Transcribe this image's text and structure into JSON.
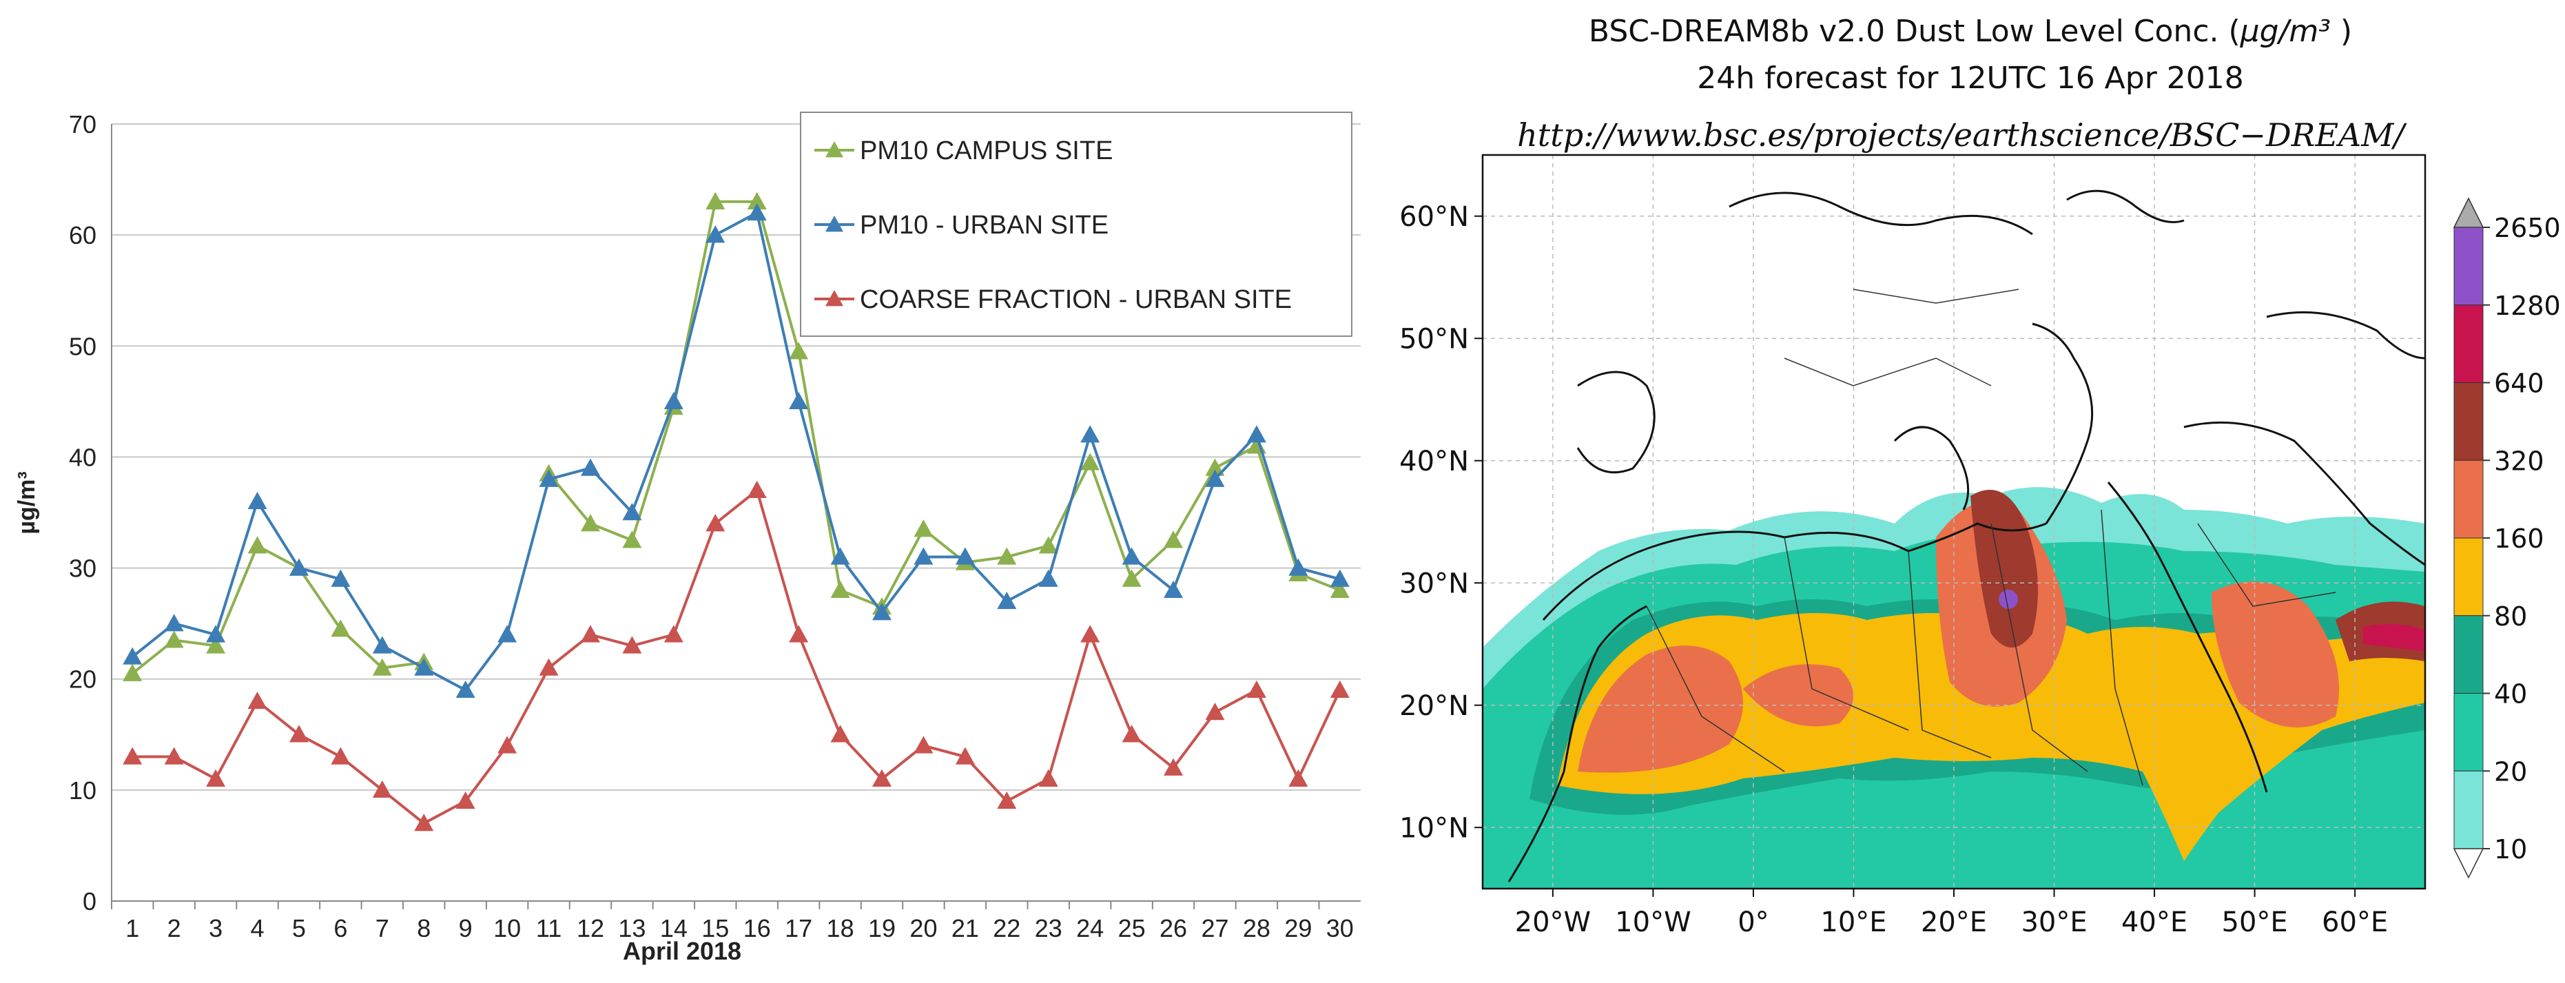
{
  "chart_data": [
    {
      "type": "line",
      "xlabel": "April 2018",
      "ylabel": "µg/m³",
      "ylim": [
        0,
        70
      ],
      "yticks": [
        0,
        10,
        20,
        30,
        40,
        50,
        60,
        70
      ],
      "grid": "horizontal",
      "legend_position": "top-right",
      "categories": [
        "1",
        "2",
        "3",
        "4",
        "5",
        "6",
        "7",
        "8",
        "9",
        "10",
        "11",
        "12",
        "13",
        "14",
        "15",
        "16",
        "17",
        "18",
        "19",
        "20",
        "21",
        "22",
        "23",
        "24",
        "25",
        "26",
        "27",
        "28",
        "29",
        "30"
      ],
      "series": [
        {
          "name": "PM10 CAMPUS SITE",
          "color": "#8db04e",
          "values": [
            20.5,
            23.5,
            23,
            32,
            30,
            24.5,
            21,
            21.5,
            null,
            null,
            38.5,
            34,
            32.5,
            44.5,
            63,
            63,
            49.5,
            28,
            26.5,
            33.5,
            30.5,
            31,
            32,
            39.5,
            29,
            32.5,
            39,
            41,
            29.5,
            28
          ]
        },
        {
          "name": "PM10 - URBAN SITE",
          "color": "#3d7db5",
          "values": [
            22,
            25,
            24,
            36,
            30,
            29,
            23,
            21,
            19,
            24,
            38,
            39,
            35,
            45,
            60,
            62,
            45,
            31,
            26,
            31,
            31,
            27,
            29,
            42,
            31,
            28,
            38,
            42,
            30,
            29
          ]
        },
        {
          "name": "COARSE FRACTION - URBAN SITE",
          "color": "#c9534f",
          "values": [
            13,
            13,
            11,
            18,
            15,
            13,
            10,
            7,
            9,
            14,
            21,
            24,
            23,
            24,
            34,
            37,
            24,
            15,
            11,
            14,
            13,
            9,
            11,
            24,
            15,
            12,
            17,
            19,
            11,
            19
          ]
        }
      ]
    },
    {
      "type": "heatmap",
      "title": "BSC-DREAM8b v2.0 Dust Low Level Conc.",
      "title_unit": "µg/m³",
      "subtitle": "24h forecast for 12UTC 16 Apr 2018",
      "url": "http://www.bsc.es/projects/earthscience/BSC−DREAM/",
      "x_ticks": [
        "20°W",
        "10°W",
        "0°",
        "10°E",
        "20°E",
        "30°E",
        "40°E",
        "50°E",
        "60°E"
      ],
      "y_ticks": [
        "60°N",
        "50°N",
        "40°N",
        "30°N",
        "20°N",
        "10°N"
      ],
      "xlim": [
        -27,
        67
      ],
      "ylim": [
        5,
        65
      ],
      "colorbar_labels": [
        "2650",
        "1280",
        "640",
        "320",
        "160",
        "80",
        "40",
        "20",
        "10"
      ],
      "colorbar_colors": [
        "#8d52c8",
        "#c8134f",
        "#9e3a2e",
        "#e9704a",
        "#f7bb08",
        "#1aa88a",
        "#22c9a4",
        "#7ae4d8"
      ],
      "colorbar_arrow_color": "#aaaaaa"
    }
  ]
}
